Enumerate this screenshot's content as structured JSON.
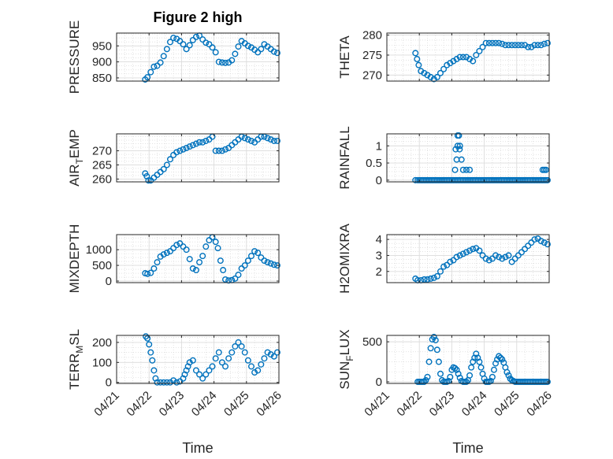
{
  "title": "Figure 2 high",
  "chart_data": [
    {
      "type": "scatter",
      "ylabel": "PRESSURE",
      "yticks": [
        850,
        900,
        950
      ],
      "ylim": [
        840,
        990
      ],
      "xlim": [
        0,
        5
      ],
      "grid": true,
      "x": [
        0.88,
        0.95,
        1.05,
        1.15,
        1.25,
        1.35,
        1.45,
        1.55,
        1.65,
        1.75,
        1.85,
        1.95,
        2.05,
        2.15,
        2.25,
        2.35,
        2.45,
        2.55,
        2.65,
        2.75,
        2.85,
        2.95,
        3.05,
        3.15,
        3.25,
        3.35,
        3.45,
        3.55,
        3.65,
        3.75,
        3.85,
        3.95,
        4.05,
        4.15,
        4.25,
        4.35,
        4.45,
        4.55,
        4.65,
        4.75,
        4.85,
        4.95
      ],
      "y": [
        845,
        852,
        868,
        885,
        888,
        898,
        918,
        940,
        962,
        975,
        972,
        965,
        955,
        940,
        952,
        968,
        978,
        982,
        970,
        960,
        955,
        945,
        930,
        900,
        898,
        897,
        898,
        905,
        925,
        948,
        965,
        958,
        950,
        945,
        938,
        930,
        940,
        955,
        948,
        940,
        932,
        928
      ]
    },
    {
      "type": "scatter",
      "ylabel": "THETA",
      "yticks": [
        270,
        275,
        280
      ],
      "ylim": [
        268.5,
        280.5
      ],
      "xlim": [
        0,
        5
      ],
      "grid": true,
      "x": [
        0.88,
        0.93,
        0.98,
        1.05,
        1.15,
        1.25,
        1.35,
        1.45,
        1.55,
        1.65,
        1.75,
        1.85,
        1.95,
        2.05,
        2.15,
        2.25,
        2.35,
        2.45,
        2.55,
        2.65,
        2.75,
        2.85,
        2.95,
        3.05,
        3.15,
        3.25,
        3.35,
        3.45,
        3.55,
        3.65,
        3.75,
        3.85,
        3.95,
        4.05,
        4.15,
        4.25,
        4.35,
        4.45,
        4.55,
        4.65,
        4.75,
        4.85,
        4.95
      ],
      "y": [
        275.5,
        274,
        272.5,
        271,
        270.5,
        270,
        269.5,
        269,
        269.5,
        270.5,
        271.5,
        272.5,
        273,
        273.5,
        274,
        274.5,
        274.5,
        274.5,
        274,
        273.5,
        275,
        276,
        277,
        278,
        278,
        278,
        278,
        278,
        277.8,
        277.5,
        277.5,
        277.5,
        277.5,
        277.5,
        277.5,
        277.5,
        277,
        277,
        277.5,
        277.5,
        277.5,
        277.8,
        278
      ]
    },
    {
      "type": "scatter",
      "ylabel": "AIR_TEMP",
      "yticks": [
        260,
        265,
        270
      ],
      "ylim": [
        259,
        276
      ],
      "xlim": [
        0,
        5
      ],
      "grid": true,
      "x": [
        0.88,
        0.93,
        0.98,
        1.05,
        1.15,
        1.25,
        1.35,
        1.45,
        1.55,
        1.65,
        1.75,
        1.85,
        1.95,
        2.05,
        2.15,
        2.25,
        2.35,
        2.45,
        2.55,
        2.65,
        2.75,
        2.85,
        2.95,
        3.05,
        3.15,
        3.25,
        3.35,
        3.45,
        3.55,
        3.65,
        3.75,
        3.85,
        3.95,
        4.05,
        4.15,
        4.25,
        4.35,
        4.45,
        4.55,
        4.65,
        4.75,
        4.85,
        4.95
      ],
      "y": [
        262,
        261,
        259.5,
        259.5,
        260.5,
        261.5,
        262.5,
        263.5,
        265,
        267,
        268.5,
        269.5,
        270,
        270.5,
        271,
        271.5,
        272,
        272.5,
        273,
        273,
        273.5,
        274,
        275,
        270,
        270,
        270,
        270.5,
        271,
        272,
        273,
        274,
        275,
        274.5,
        274,
        273.5,
        273,
        274,
        275,
        275,
        274.5,
        274,
        273.5,
        273.5
      ]
    },
    {
      "type": "scatter",
      "ylabel": "RAINFALL",
      "yticks": [
        0,
        0.5,
        1
      ],
      "ytick_labels": [
        "0",
        "0.5",
        "1"
      ],
      "ylim": [
        -0.05,
        1.35
      ],
      "xlim": [
        0,
        5
      ],
      "grid": true,
      "x": [
        0.88,
        0.95,
        1.0,
        1.05,
        1.1,
        1.15,
        1.2,
        1.25,
        1.3,
        1.35,
        1.4,
        1.45,
        1.5,
        1.55,
        1.6,
        1.65,
        1.7,
        1.75,
        1.8,
        1.85,
        1.9,
        1.95,
        2.0,
        2.05,
        2.1,
        2.15,
        2.2,
        2.25,
        2.3,
        2.35,
        2.4,
        2.45,
        2.5,
        2.55,
        2.6,
        2.65,
        2.7,
        2.75,
        2.8,
        2.85,
        2.9,
        2.95,
        3.0,
        3.05,
        3.1,
        3.15,
        3.2,
        3.25,
        3.3,
        3.35,
        3.4,
        3.45,
        3.5,
        3.55,
        3.6,
        3.65,
        3.7,
        3.75,
        3.8,
        3.85,
        3.9,
        3.95,
        4.0,
        4.05,
        4.1,
        4.15,
        4.2,
        4.25,
        4.3,
        4.35,
        4.4,
        4.45,
        4.5,
        4.55,
        4.6,
        4.65,
        4.7,
        4.75,
        4.8,
        4.85,
        4.9,
        4.95,
        2.1,
        2.15,
        2.18,
        2.22,
        2.25,
        2.3,
        2.35,
        2.45,
        2.55,
        4.8,
        4.85,
        4.9,
        2.12,
        2.18,
        2.24
      ],
      "y": [
        0,
        0,
        0,
        0,
        0,
        0,
        0,
        0,
        0,
        0,
        0,
        0,
        0,
        0,
        0,
        0,
        0,
        0,
        0,
        0,
        0,
        0,
        0,
        0,
        0,
        0,
        0,
        0,
        0,
        0,
        0,
        0,
        0,
        0,
        0,
        0,
        0,
        0,
        0,
        0,
        0,
        0,
        0,
        0,
        0,
        0,
        0,
        0,
        0,
        0,
        0,
        0,
        0,
        0,
        0,
        0,
        0,
        0,
        0,
        0,
        0,
        0,
        0,
        0,
        0,
        0,
        0,
        0,
        0,
        0,
        0,
        0,
        0,
        0,
        0,
        0,
        0,
        0,
        0,
        0,
        0,
        0,
        0.3,
        0.6,
        1.0,
        1.3,
        1.0,
        0.6,
        0.3,
        0.3,
        0.3,
        0.3,
        0.3,
        0.3,
        0.9,
        1.3,
        0.9
      ]
    },
    {
      "type": "scatter",
      "ylabel": "MIXDEPTH",
      "yticks": [
        0,
        500,
        1000
      ],
      "ylim": [
        -50,
        1480
      ],
      "xlim": [
        0,
        5
      ],
      "grid": true,
      "x": [
        0.88,
        0.95,
        1.05,
        1.15,
        1.25,
        1.35,
        1.45,
        1.55,
        1.65,
        1.75,
        1.85,
        1.95,
        2.05,
        2.15,
        2.25,
        2.35,
        2.45,
        2.55,
        2.65,
        2.75,
        2.85,
        2.95,
        3.05,
        3.12,
        3.2,
        3.28,
        3.35,
        3.45,
        3.55,
        3.65,
        3.75,
        3.85,
        3.95,
        4.05,
        4.15,
        4.25,
        4.35,
        4.45,
        4.55,
        4.65,
        4.75,
        4.85,
        4.95
      ],
      "y": [
        250,
        230,
        260,
        400,
        600,
        780,
        850,
        900,
        950,
        1050,
        1150,
        1200,
        1100,
        1000,
        700,
        400,
        350,
        600,
        800,
        1100,
        1300,
        1400,
        1250,
        1050,
        650,
        350,
        50,
        20,
        30,
        80,
        200,
        400,
        500,
        650,
        800,
        950,
        900,
        750,
        650,
        600,
        560,
        520,
        500
      ]
    },
    {
      "type": "scatter",
      "ylabel": "H2OMIXRA",
      "yticks": [
        2,
        3,
        4
      ],
      "ylim": [
        1.3,
        4.3
      ],
      "xlim": [
        0,
        5
      ],
      "grid": true,
      "x": [
        0.88,
        0.95,
        1.05,
        1.15,
        1.25,
        1.35,
        1.45,
        1.55,
        1.65,
        1.75,
        1.85,
        1.95,
        2.05,
        2.15,
        2.25,
        2.35,
        2.45,
        2.55,
        2.65,
        2.75,
        2.85,
        2.95,
        3.05,
        3.15,
        3.25,
        3.35,
        3.45,
        3.55,
        3.65,
        3.75,
        3.85,
        3.95,
        4.05,
        4.15,
        4.25,
        4.35,
        4.45,
        4.55,
        4.65,
        4.75,
        4.85,
        4.95
      ],
      "y": [
        1.55,
        1.45,
        1.45,
        1.5,
        1.5,
        1.55,
        1.6,
        1.7,
        2.0,
        2.3,
        2.4,
        2.6,
        2.7,
        2.9,
        3.0,
        3.1,
        3.2,
        3.3,
        3.4,
        3.45,
        3.3,
        3.0,
        2.8,
        2.7,
        2.8,
        3.0,
        2.9,
        2.8,
        2.9,
        3.0,
        2.6,
        2.8,
        3.0,
        3.2,
        3.4,
        3.6,
        3.8,
        4.0,
        4.05,
        3.9,
        3.8,
        3.7
      ]
    },
    {
      "type": "scatter",
      "ylabel": "TERR_MSL",
      "yticks": [
        0,
        100,
        200
      ],
      "ylim": [
        -5,
        235
      ],
      "xlim": [
        0,
        5
      ],
      "grid": true,
      "x": [
        0.9,
        0.95,
        1.0,
        1.05,
        1.1,
        1.15,
        1.2,
        1.25,
        1.35,
        1.45,
        1.55,
        1.65,
        1.75,
        1.85,
        1.95,
        2.05,
        2.1,
        2.15,
        2.2,
        2.25,
        2.35,
        2.45,
        2.55,
        2.65,
        2.75,
        2.85,
        2.95,
        3.05,
        3.15,
        3.25,
        3.35,
        3.45,
        3.55,
        3.65,
        3.75,
        3.85,
        3.95,
        4.05,
        4.15,
        4.25,
        4.35,
        4.45,
        4.55,
        4.65,
        4.75,
        4.85,
        4.95
      ],
      "y": [
        230,
        220,
        190,
        150,
        110,
        60,
        20,
        0,
        0,
        0,
        0,
        0,
        10,
        0,
        5,
        20,
        40,
        60,
        80,
        100,
        110,
        60,
        40,
        20,
        40,
        60,
        80,
        120,
        150,
        100,
        80,
        120,
        150,
        180,
        200,
        180,
        150,
        110,
        80,
        50,
        60,
        90,
        120,
        150,
        140,
        130,
        150
      ]
    },
    {
      "type": "scatter",
      "ylabel": "SUN_FLUX",
      "yticks": [
        0,
        500
      ],
      "ylim": [
        -20,
        580
      ],
      "xlim": [
        0,
        5
      ],
      "grid": true,
      "x": [
        0.95,
        1.0,
        1.05,
        1.1,
        1.15,
        1.2,
        1.25,
        1.3,
        1.35,
        1.4,
        1.45,
        1.5,
        1.55,
        1.6,
        1.65,
        1.7,
        1.75,
        1.8,
        1.85,
        1.9,
        1.95,
        2.0,
        2.05,
        2.1,
        2.15,
        2.2,
        2.25,
        2.3,
        2.35,
        2.4,
        2.45,
        2.5,
        2.55,
        2.6,
        2.65,
        2.7,
        2.75,
        2.8,
        2.85,
        2.9,
        2.95,
        3.0,
        3.05,
        3.1,
        3.15,
        3.2,
        3.25,
        3.3,
        3.35,
        3.4,
        3.45,
        3.5,
        3.55,
        3.6,
        3.65,
        3.7,
        3.75,
        3.8,
        3.85,
        3.9,
        3.95,
        4.0,
        4.05,
        4.1,
        4.15,
        4.2,
        4.25,
        4.3,
        4.35,
        4.4,
        4.45,
        4.5,
        4.55,
        4.6,
        4.65,
        4.7,
        4.75,
        4.8,
        4.85,
        4.9,
        4.95
      ],
      "y": [
        0,
        0,
        0,
        0,
        0,
        20,
        60,
        250,
        420,
        530,
        560,
        520,
        400,
        250,
        100,
        20,
        0,
        0,
        0,
        10,
        60,
        150,
        180,
        170,
        150,
        100,
        50,
        10,
        0,
        0,
        0,
        20,
        80,
        180,
        250,
        300,
        350,
        300,
        250,
        180,
        100,
        40,
        0,
        0,
        0,
        10,
        60,
        150,
        230,
        280,
        320,
        300,
        280,
        240,
        180,
        120,
        80,
        40,
        20,
        10,
        0,
        0,
        0,
        0,
        0,
        0,
        0,
        0,
        0,
        0,
        0,
        0,
        0,
        0,
        0,
        0,
        0,
        0,
        0,
        0,
        0
      ]
    }
  ],
  "xtick_labels": [
    "04/21",
    "04/22",
    "04/23",
    "04/24",
    "04/25",
    "04/26"
  ],
  "xlabel": "Time"
}
